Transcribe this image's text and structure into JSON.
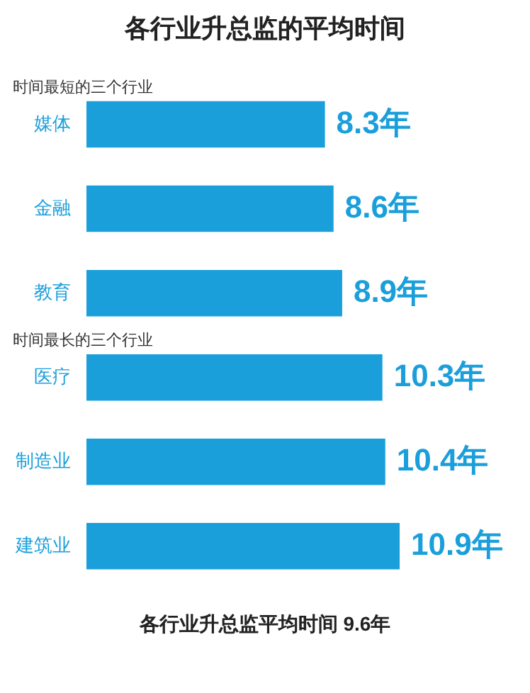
{
  "chart_data": {
    "type": "bar",
    "orientation": "horizontal",
    "title": "各行业升总监的平均时间",
    "categories": [
      "媒体",
      "金融",
      "教育",
      "医疗",
      "制造业",
      "建筑业"
    ],
    "values": [
      8.3,
      8.6,
      8.9,
      10.3,
      10.4,
      10.9
    ],
    "value_labels": [
      "8.3年",
      "8.6年",
      "8.9年",
      "10.3年",
      "10.4年",
      "10.9年"
    ],
    "color": "#1a9fdb",
    "annotations": [
      {
        "text": "时间最短的三个行业",
        "y": "媒体"
      },
      {
        "text": "时间最长的三个行业",
        "y": "医疗"
      },
      "各行业升总监平均时间 9.6年"
    ],
    "grid": false,
    "legend": false
  }
}
